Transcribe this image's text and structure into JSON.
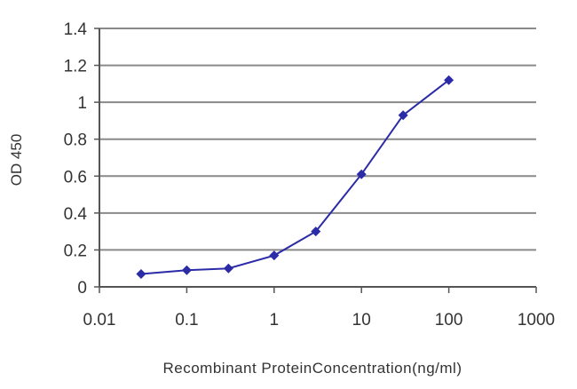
{
  "chart_data": {
    "type": "line",
    "title": "",
    "xlabel": "Recombinant ProteinConcentration(ng/ml)",
    "ylabel": "OD 450",
    "x_scale": "log",
    "xlim": [
      0.01,
      1000
    ],
    "ylim": [
      0,
      1.4
    ],
    "x_ticks": [
      "0.01",
      "0.1",
      "1",
      "10",
      "100",
      "1000"
    ],
    "y_ticks": [
      "0",
      "0.2",
      "0.4",
      "0.6",
      "0.8",
      "1",
      "1.2",
      "1.4"
    ],
    "grid": "horizontal",
    "legend": "none",
    "series": [
      {
        "color": "#2b2ba8",
        "marker": "diamond",
        "x": [
          0.03,
          0.1,
          0.3,
          1,
          3,
          10,
          30,
          100
        ],
        "y": [
          0.07,
          0.09,
          0.1,
          0.17,
          0.3,
          0.61,
          0.93,
          1.12
        ]
      }
    ]
  }
}
